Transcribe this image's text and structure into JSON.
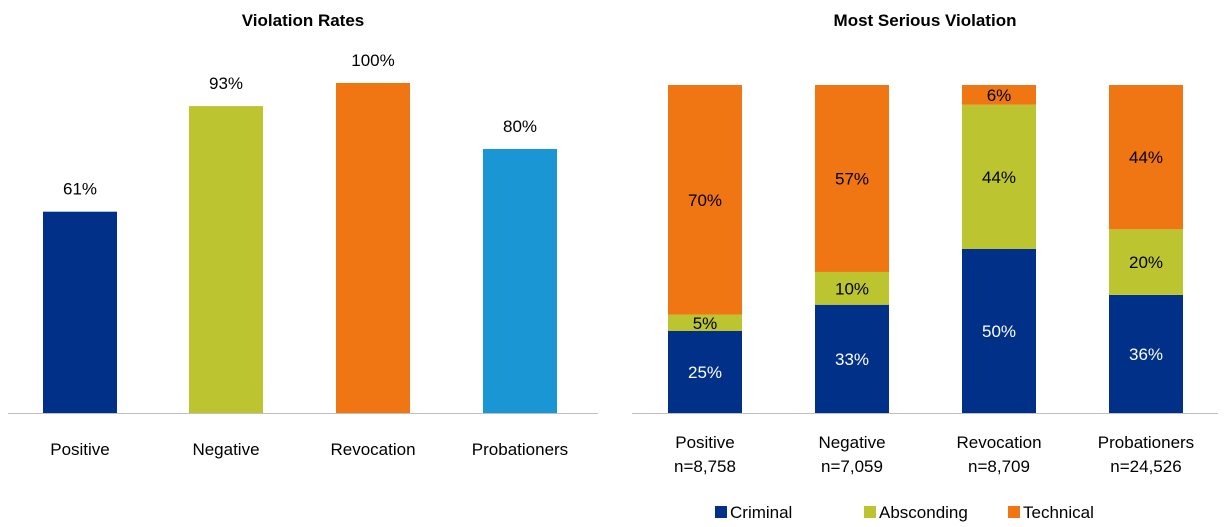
{
  "chart_data": [
    {
      "type": "bar",
      "title": "Violation Rates",
      "categories": [
        "Positive",
        "Negative",
        "Revocation",
        "Probationers"
      ],
      "values": [
        61,
        93,
        100,
        80
      ],
      "value_labels": [
        "61%",
        "93%",
        "100%",
        "80%"
      ],
      "colors": [
        "#003087",
        "#bcc52f",
        "#f07513",
        "#1b96d4"
      ],
      "ylim": [
        0,
        100
      ],
      "grid": false
    },
    {
      "type": "bar",
      "stacked": true,
      "title": "Most Serious Violation",
      "categories": [
        "Positive",
        "Negative",
        "Revocation",
        "Probationers"
      ],
      "category_counts": [
        "n=8,758",
        "n=7,059",
        "n=8,709",
        "n=24,526"
      ],
      "series": [
        {
          "name": "Criminal",
          "values": [
            25,
            33,
            50,
            36
          ],
          "labels": [
            "25%",
            "33%",
            "50%",
            "36%"
          ],
          "color": "#003087"
        },
        {
          "name": "Absconding",
          "values": [
            5,
            10,
            44,
            20
          ],
          "labels": [
            "5%",
            "10%",
            "44%",
            "20%"
          ],
          "color": "#bcc52f"
        },
        {
          "name": "Technical",
          "values": [
            70,
            57,
            6,
            44
          ],
          "labels": [
            "70%",
            "57%",
            "6%",
            "44%"
          ],
          "color": "#f07513"
        }
      ],
      "ylim": [
        0,
        100
      ],
      "legend": "bottom",
      "grid": false
    }
  ]
}
